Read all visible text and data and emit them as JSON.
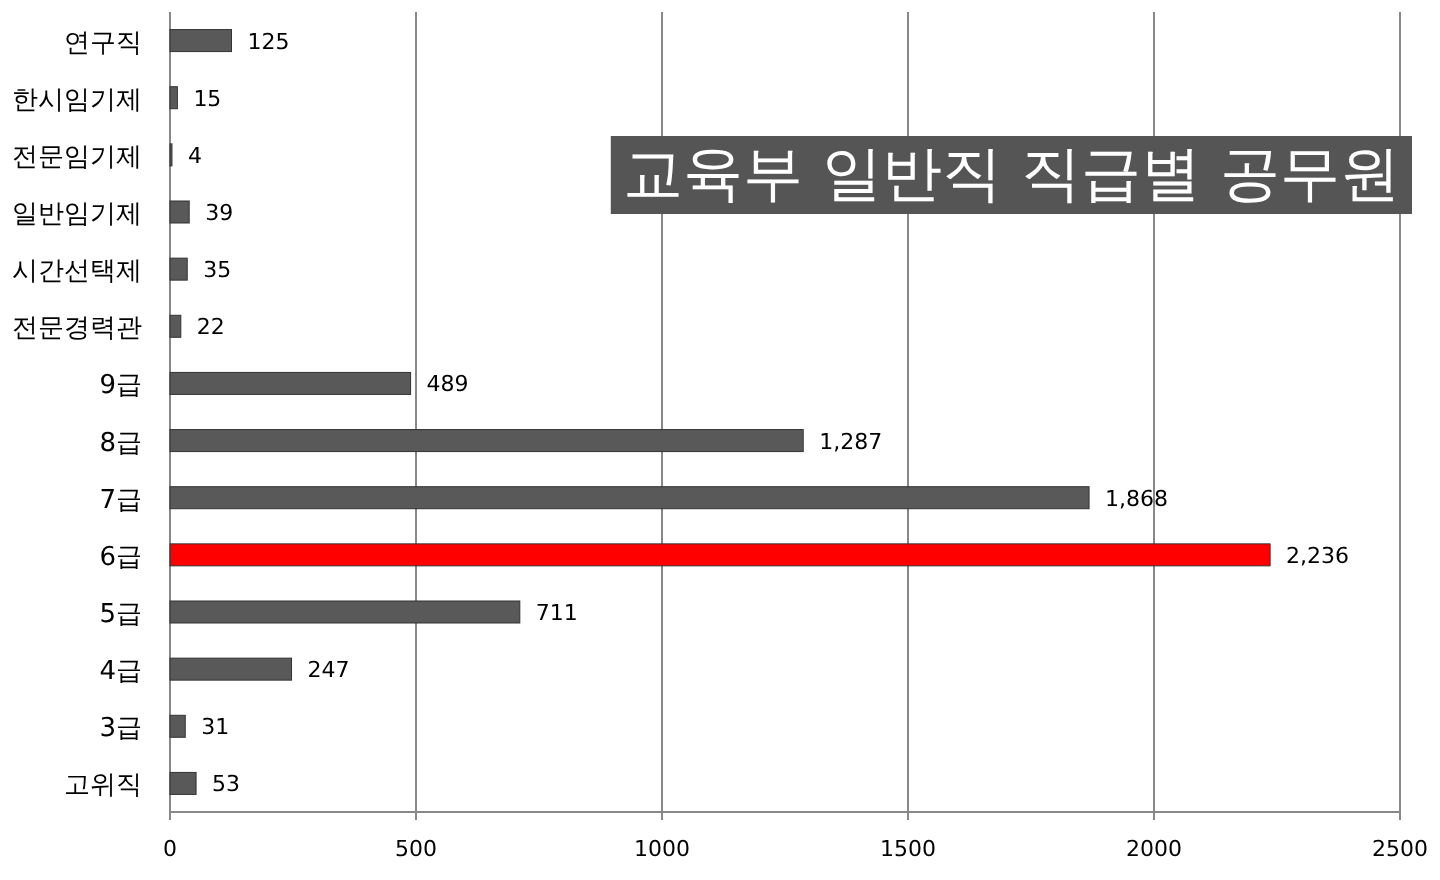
{
  "chart_data": {
    "type": "bar",
    "orientation": "horizontal",
    "title": "교육부 일반직 직급별 공무원",
    "categories": [
      "연구직",
      "한시임기제",
      "전문임기제",
      "일반임기제",
      "시간선택제",
      "전문경력관",
      "9급",
      "8급",
      "7급",
      "6급",
      "5급",
      "4급",
      "3급",
      "고위직"
    ],
    "values": [
      125,
      15,
      4,
      39,
      35,
      22,
      489,
      1287,
      1868,
      2236,
      711,
      247,
      31,
      53
    ],
    "colors": [
      "#595959",
      "#595959",
      "#595959",
      "#595959",
      "#595959",
      "#595959",
      "#595959",
      "#595959",
      "#595959",
      "#ff0000",
      "#595959",
      "#595959",
      "#595959",
      "#595959"
    ],
    "value_labels": [
      "125",
      "15",
      "4",
      "39",
      "35",
      "22",
      "489",
      "1,287",
      "1,868",
      "2,236",
      "711",
      "247",
      "31",
      "53"
    ],
    "xlim": [
      0,
      2500
    ],
    "xticks": [
      0,
      500,
      1000,
      1500,
      2000,
      2500
    ],
    "grid": "x"
  }
}
